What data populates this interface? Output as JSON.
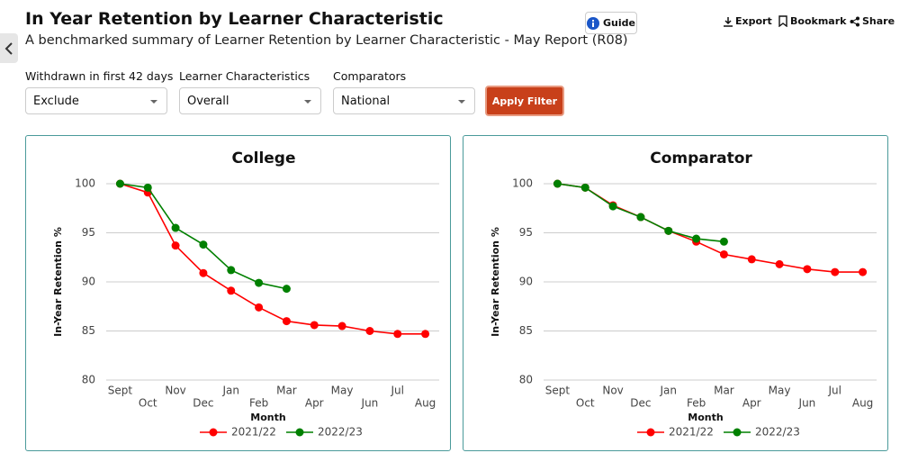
{
  "header": {
    "title": "In Year Retention by Learner Characteristic",
    "subtitle": "A benchmarked summary of Learner Retention by Learner Characteristic - May Report (R08)",
    "guide": "Guide",
    "actions": [
      "Export",
      "Bookmark",
      "Share"
    ]
  },
  "filters": [
    {
      "label": "Withdrawn in first 42 days",
      "value": "Exclude"
    },
    {
      "label": "Learner Characteristics",
      "value": "Overall"
    },
    {
      "label": "Comparators",
      "value": "National"
    }
  ],
  "apply_button": "Apply Filter",
  "chart_data": [
    {
      "type": "line",
      "title": "College",
      "x_label": "Month",
      "y_label": "In-Year Retention %",
      "categories": [
        "Sept",
        "Oct",
        "Nov",
        "Dec",
        "Jan",
        "Feb",
        "Mar",
        "Apr",
        "May",
        "Jun",
        "Jul",
        "Aug"
      ],
      "ylim": [
        80,
        100
      ],
      "yticks": [
        80,
        85,
        90,
        95,
        100
      ],
      "grid": true,
      "series": [
        {
          "name": "2021/22",
          "color": "#ff0000",
          "values": [
            100,
            99.1,
            93.7,
            90.9,
            89.1,
            87.4,
            86.0,
            85.6,
            85.5,
            85.0,
            84.7,
            84.7
          ]
        },
        {
          "name": "2022/23",
          "color": "#008000",
          "values": [
            100,
            99.6,
            95.5,
            93.8,
            91.2,
            89.9,
            89.3,
            null,
            null,
            null,
            null,
            null
          ]
        }
      ]
    },
    {
      "type": "line",
      "title": "Comparator",
      "x_label": "Month",
      "y_label": "In-Year Retention %",
      "categories": [
        "Sept",
        "Oct",
        "Nov",
        "Dec",
        "Jan",
        "Feb",
        "Mar",
        "Apr",
        "May",
        "Jun",
        "Jul",
        "Aug"
      ],
      "ylim": [
        80,
        100
      ],
      "yticks": [
        80,
        85,
        90,
        95,
        100
      ],
      "grid": true,
      "series": [
        {
          "name": "2021/22",
          "color": "#ff0000",
          "values": [
            100,
            99.6,
            97.8,
            96.6,
            95.2,
            94.1,
            92.8,
            92.3,
            91.8,
            91.3,
            91.0,
            91.0
          ]
        },
        {
          "name": "2022/23",
          "color": "#008000",
          "values": [
            100,
            99.6,
            97.7,
            96.6,
            95.2,
            94.4,
            94.1,
            null,
            null,
            null,
            null,
            null
          ]
        }
      ]
    }
  ]
}
